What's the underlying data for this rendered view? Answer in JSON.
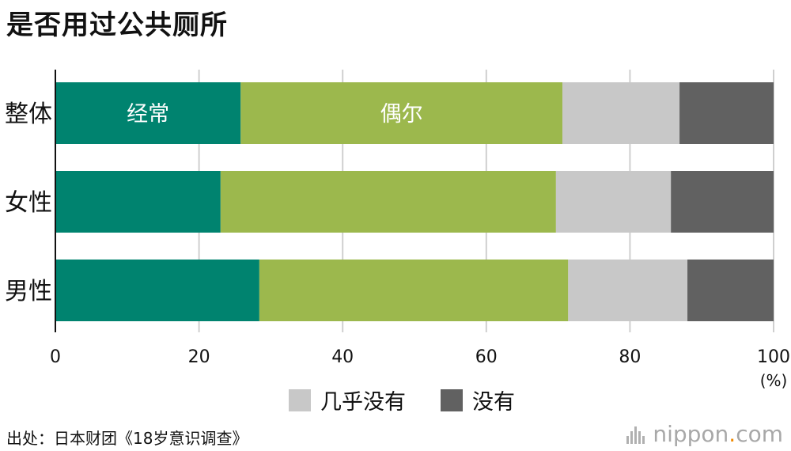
{
  "title": "是否用过公共厕所",
  "source": "出处：日本财团《18岁意识调查》",
  "brand": {
    "name": "nippon",
    "dot": ".",
    "tld": "com"
  },
  "colors": {
    "frequently": "#00836f",
    "occasionally": "#9cb84d",
    "rarely": "#c8c8c8",
    "never": "#616161",
    "grid": "#cfcfcf",
    "brand_dot": "#f08a00"
  },
  "chart_data": {
    "type": "bar",
    "orientation": "horizontal",
    "stacked": true,
    "categories": [
      "整体",
      "女性",
      "男性"
    ],
    "series": [
      {
        "name": "经常",
        "values": [
          25.8,
          23.0,
          28.4
        ]
      },
      {
        "name": "偶尔",
        "values": [
          44.8,
          46.7,
          43.0
        ]
      },
      {
        "name": "几乎没有",
        "values": [
          16.3,
          16.0,
          16.6
        ]
      },
      {
        "name": "没有",
        "values": [
          13.1,
          14.3,
          12.0
        ]
      }
    ],
    "xlim": [
      0,
      100
    ],
    "xticks": [
      "0",
      "20",
      "40",
      "60",
      "80",
      "100"
    ],
    "xlabel": "(%)",
    "grid": true,
    "legend": {
      "position": "bottom",
      "entries": [
        "几乎没有",
        "没有"
      ]
    },
    "inline_labels": [
      "经常",
      "偶尔"
    ]
  }
}
